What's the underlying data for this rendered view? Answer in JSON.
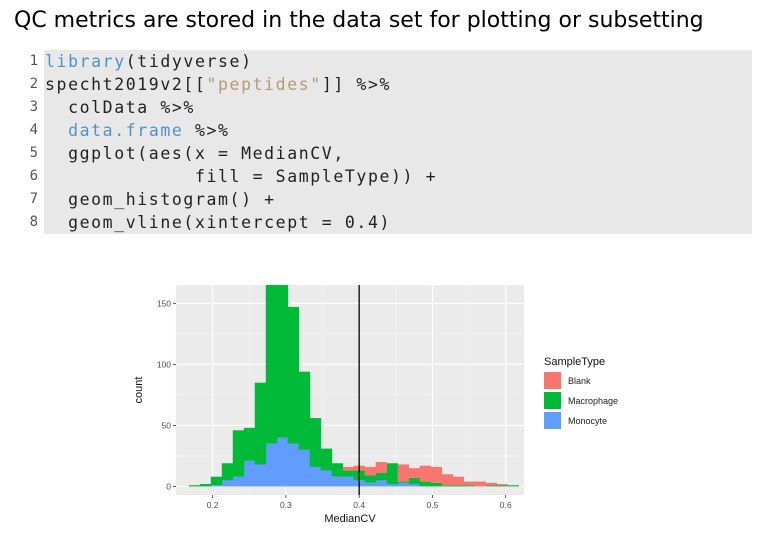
{
  "slide": {
    "title": "QC metrics are stored in the data set for plotting or subsetting"
  },
  "code": {
    "lines": [
      {
        "n": "1",
        "tokens": [
          {
            "t": "library",
            "c": "kw"
          },
          {
            "t": "(tidyverse)",
            "c": ""
          }
        ]
      },
      {
        "n": "2",
        "tokens": [
          {
            "t": "specht2019v2[[",
            "c": ""
          },
          {
            "t": "\"peptides\"",
            "c": "str"
          },
          {
            "t": "]] %>%",
            "c": ""
          }
        ]
      },
      {
        "n": "3",
        "tokens": [
          {
            "t": "  colData %>%",
            "c": ""
          }
        ]
      },
      {
        "n": "4",
        "tokens": [
          {
            "t": "  ",
            "c": ""
          },
          {
            "t": "data.frame",
            "c": "kw"
          },
          {
            "t": " %>%",
            "c": ""
          }
        ]
      },
      {
        "n": "5",
        "tokens": [
          {
            "t": "  ggplot(aes(x = MedianCV,",
            "c": ""
          }
        ]
      },
      {
        "n": "6",
        "tokens": [
          {
            "t": "             fill = SampleType)) +",
            "c": ""
          }
        ]
      },
      {
        "n": "7",
        "tokens": [
          {
            "t": "  geom_histogram() +",
            "c": ""
          }
        ]
      },
      {
        "n": "8",
        "tokens": [
          {
            "t": "  geom_vline(xintercept = 0.4)",
            "c": ""
          }
        ]
      }
    ]
  },
  "chart_data": {
    "type": "bar",
    "subtype": "stacked-histogram",
    "xlabel": "MedianCV",
    "ylabel": "count",
    "xlim": [
      0.15,
      0.625
    ],
    "ylim": [
      -7,
      165
    ],
    "x_ticks": [
      "0.2",
      "0.3",
      "0.4",
      "0.5",
      "0.6"
    ],
    "y_ticks": [
      "0",
      "50",
      "100",
      "150"
    ],
    "grid": true,
    "bin_width": 0.015,
    "bin_centers": [
      0.175,
      0.19,
      0.205,
      0.22,
      0.235,
      0.25,
      0.265,
      0.28,
      0.295,
      0.31,
      0.325,
      0.34,
      0.355,
      0.37,
      0.385,
      0.4,
      0.415,
      0.43,
      0.445,
      0.46,
      0.475,
      0.49,
      0.505,
      0.52,
      0.535,
      0.55,
      0.565,
      0.58,
      0.595,
      0.61
    ],
    "series": [
      {
        "name": "Monocyte",
        "color": "#619cff",
        "values": [
          0,
          0,
          1,
          5,
          8,
          21,
          18,
          35,
          40,
          35,
          30,
          16,
          13,
          8,
          8,
          5,
          3,
          5,
          2,
          3,
          2,
          0,
          0,
          0,
          0,
          0,
          0,
          0,
          0,
          0
        ]
      },
      {
        "name": "Macrophage",
        "color": "#00ba38",
        "values": [
          1,
          2,
          7,
          14,
          38,
          27,
          67,
          132,
          125,
          112,
          64,
          40,
          18,
          11,
          5,
          8,
          6,
          6,
          17,
          1,
          5,
          4,
          3,
          1,
          1,
          1,
          0,
          1,
          1,
          1
        ]
      },
      {
        "name": "Blank",
        "color": "#f8766d",
        "values": [
          0,
          0,
          0,
          0,
          0,
          0,
          0,
          0,
          3,
          0,
          0,
          0,
          0,
          0,
          3,
          4,
          7,
          9,
          0,
          14,
          8,
          13,
          13,
          9,
          7,
          3,
          4,
          2,
          1,
          0
        ]
      }
    ],
    "vline": {
      "x": 0.4,
      "color": "#000000"
    },
    "legend": {
      "title": "SampleType",
      "placement": "right",
      "entries": [
        {
          "label": "Blank",
          "color": "#f8766d"
        },
        {
          "label": "Macrophage",
          "color": "#00ba38"
        },
        {
          "label": "Monocyte",
          "color": "#619cff"
        }
      ]
    }
  }
}
